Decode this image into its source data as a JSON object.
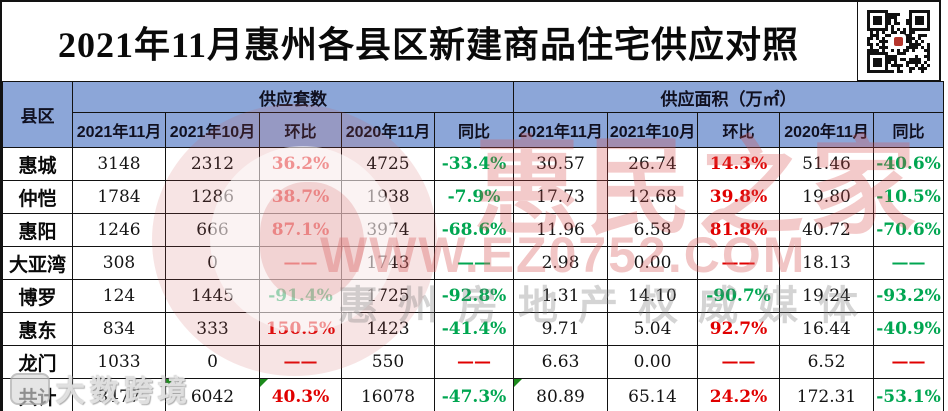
{
  "chart_data": {
    "type": "table",
    "title": "2021年11月惠州各县区新建商品住宅供应对照",
    "corner_header": "县区",
    "group_headers": [
      "供应套数",
      "供应面积（万㎡）"
    ],
    "sub_headers": [
      "2021年11月",
      "2021年10月",
      "环比",
      "2020年11月",
      "同比"
    ],
    "rows": [
      {
        "label": "惠城",
        "cells": [
          {
            "v": "3148"
          },
          {
            "v": "2312"
          },
          {
            "v": "36.2%",
            "c": "red"
          },
          {
            "v": "4725"
          },
          {
            "v": "-33.4%",
            "c": "green"
          },
          {
            "v": "30.57"
          },
          {
            "v": "26.74"
          },
          {
            "v": "14.3%",
            "c": "red"
          },
          {
            "v": "51.46"
          },
          {
            "v": "-40.6%",
            "c": "green"
          }
        ]
      },
      {
        "label": "仲恺",
        "cells": [
          {
            "v": "1784"
          },
          {
            "v": "1286"
          },
          {
            "v": "38.7%",
            "c": "red"
          },
          {
            "v": "1938"
          },
          {
            "v": "-7.9%",
            "c": "green"
          },
          {
            "v": "17.73"
          },
          {
            "v": "12.68"
          },
          {
            "v": "39.8%",
            "c": "red"
          },
          {
            "v": "19.80"
          },
          {
            "v": "-10.5%",
            "c": "green"
          }
        ]
      },
      {
        "label": "惠阳",
        "cells": [
          {
            "v": "1246"
          },
          {
            "v": "666"
          },
          {
            "v": "87.1%",
            "c": "red"
          },
          {
            "v": "3974"
          },
          {
            "v": "-68.6%",
            "c": "green"
          },
          {
            "v": "11.96"
          },
          {
            "v": "6.58"
          },
          {
            "v": "81.8%",
            "c": "red"
          },
          {
            "v": "40.72"
          },
          {
            "v": "-70.6%",
            "c": "green"
          }
        ]
      },
      {
        "label": "大亚湾",
        "cells": [
          {
            "v": "308"
          },
          {
            "v": "0"
          },
          {
            "v": "——",
            "c": "red"
          },
          {
            "v": "1743"
          },
          {
            "v": "——",
            "c": "green"
          },
          {
            "v": "2.98"
          },
          {
            "v": "0.00"
          },
          {
            "v": "——",
            "c": "red"
          },
          {
            "v": "18.13"
          },
          {
            "v": "——",
            "c": "green"
          }
        ]
      },
      {
        "label": "博罗",
        "cells": [
          {
            "v": "124"
          },
          {
            "v": "1445"
          },
          {
            "v": "-91.4%",
            "c": "green"
          },
          {
            "v": "1725"
          },
          {
            "v": "-92.8%",
            "c": "green"
          },
          {
            "v": "1.31"
          },
          {
            "v": "14.10"
          },
          {
            "v": "-90.7%",
            "c": "green"
          },
          {
            "v": "19.24"
          },
          {
            "v": "-93.2%",
            "c": "green"
          }
        ]
      },
      {
        "label": "惠东",
        "cells": [
          {
            "v": "834"
          },
          {
            "v": "333"
          },
          {
            "v": "150.5%",
            "c": "red"
          },
          {
            "v": "1423"
          },
          {
            "v": "-41.4%",
            "c": "green"
          },
          {
            "v": "9.71"
          },
          {
            "v": "5.04"
          },
          {
            "v": "92.7%",
            "c": "red"
          },
          {
            "v": "16.44"
          },
          {
            "v": "-40.9%",
            "c": "green"
          }
        ]
      },
      {
        "label": "龙门",
        "cells": [
          {
            "v": "1033"
          },
          {
            "v": "0"
          },
          {
            "v": "——",
            "c": "red"
          },
          {
            "v": "550"
          },
          {
            "v": "——",
            "c": "red"
          },
          {
            "v": "6.63"
          },
          {
            "v": "0.00"
          },
          {
            "v": "——",
            "c": "red"
          },
          {
            "v": "6.52"
          },
          {
            "v": "——",
            "c": "red"
          }
        ]
      },
      {
        "label": "共计",
        "cells": [
          {
            "v": "8477"
          },
          {
            "v": "6042",
            "tri": true
          },
          {
            "v": "40.3%",
            "c": "red",
            "tri": true
          },
          {
            "v": "16078"
          },
          {
            "v": "-47.3%",
            "c": "green"
          },
          {
            "v": "80.89",
            "tri": true
          },
          {
            "v": "65.14"
          },
          {
            "v": "24.2%",
            "c": "red"
          },
          {
            "v": "172.31"
          },
          {
            "v": "-53.1%",
            "c": "green"
          }
        ]
      }
    ]
  },
  "watermarks": {
    "brand_text": "惠民之家",
    "url_text": "WWW.EZ0752.COM",
    "tagline_text": "惠州房地产权威媒体",
    "corner_text": "大数跨境"
  },
  "colors": {
    "header_bg": "#8CA6D8",
    "red": "#E00000",
    "green": "#00A651",
    "triangle": "#1C8A1C"
  }
}
